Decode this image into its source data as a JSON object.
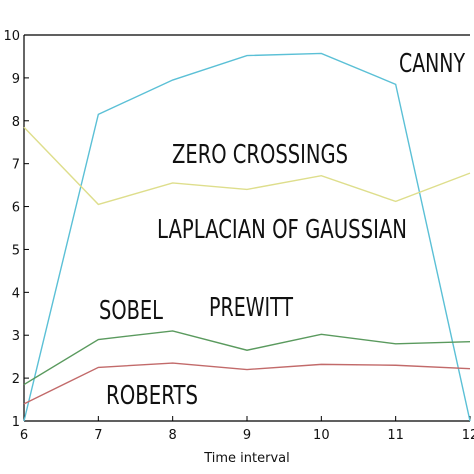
{
  "chart_data": {
    "type": "line",
    "xlabel": "Time interval",
    "ylabel": "",
    "xlim": [
      6,
      12
    ],
    "ylim": [
      1,
      10
    ],
    "xticks": [
      "6",
      "7",
      "8",
      "9",
      "10",
      "11",
      "12"
    ],
    "yticks": [
      "1",
      "2",
      "3",
      "4",
      "5",
      "6",
      "7",
      "8",
      "9",
      "10"
    ],
    "grid": false,
    "x": [
      6,
      7,
      8,
      9,
      10,
      11,
      12
    ],
    "series": [
      {
        "name": "CANNY",
        "color": "#5bc0d6",
        "values": [
          1.0,
          8.15,
          8.95,
          9.52,
          9.57,
          8.85,
          1.0
        ]
      },
      {
        "name": "ZERO CROSSINGS",
        "color": "#dede8c",
        "values": [
          7.85,
          6.05,
          6.55,
          6.4,
          6.72,
          6.12,
          6.78
        ]
      },
      {
        "name": "SOBEL",
        "color": "#5a9a5e",
        "values": [
          1.85,
          2.9,
          3.1,
          2.65,
          3.02,
          2.8,
          2.85
        ]
      },
      {
        "name": "ROBERTS",
        "color": "#c26a6a",
        "values": [
          1.4,
          2.25,
          2.35,
          2.2,
          2.32,
          2.3,
          2.22
        ]
      }
    ],
    "annotations": [
      "CANNY",
      "ZERO CROSSINGS",
      "LAPLACIAN OF GAUSSIAN",
      "SOBEL",
      "PREWITT",
      "ROBERTS"
    ]
  }
}
